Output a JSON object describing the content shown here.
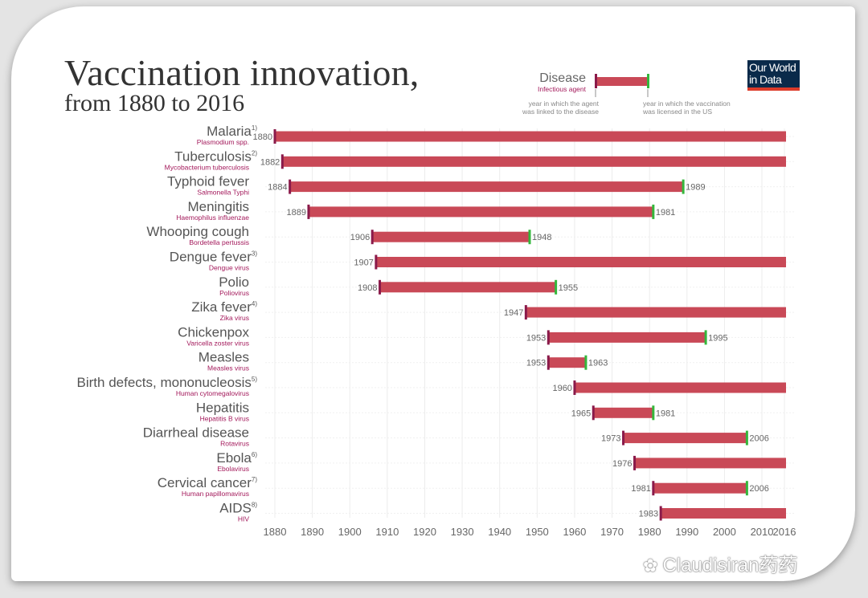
{
  "title": "Vaccination innovation,",
  "subtitle": "from 1880 to 2016",
  "logo": {
    "line1": "Our World",
    "line2": "in Data"
  },
  "legend": {
    "disease": "Disease",
    "agent": "Infectious agent",
    "left_note_1": "year in which the agent",
    "left_note_2": "was linked to the disease",
    "right_note_1": "year in which the vaccination",
    "right_note_2": "was licensed in the US"
  },
  "watermark": "Claudisiran药药",
  "colors": {
    "bar": "#c94957",
    "start": "#8a1a4a",
    "end": "#34b73c",
    "agent": "#a3195b",
    "text": "#555555"
  },
  "chart_data": {
    "type": "bar",
    "orientation": "horizontal-range",
    "x_ticks": [
      1880,
      1890,
      1900,
      1910,
      1920,
      1930,
      1940,
      1950,
      1960,
      1970,
      1980,
      1990,
      2000,
      2010,
      2016
    ],
    "xlim": [
      1880,
      2016
    ],
    "rows": [
      {
        "disease": "Malaria",
        "note": "1)",
        "agent": "Plasmodium spp.",
        "start": 1880,
        "end": null
      },
      {
        "disease": "Tuberculosis",
        "note": "2)",
        "agent": "Mycobacterium tuberculosis",
        "start": 1882,
        "end": null
      },
      {
        "disease": "Typhoid fever",
        "note": "",
        "agent": "Salmonella Typhi",
        "start": 1884,
        "end": 1989
      },
      {
        "disease": "Meningitis",
        "note": "",
        "agent": "Haemophilus influenzae",
        "start": 1889,
        "end": 1981
      },
      {
        "disease": "Whooping cough",
        "note": "",
        "agent": "Bordetella pertussis",
        "start": 1906,
        "end": 1948
      },
      {
        "disease": "Dengue fever",
        "note": "3)",
        "agent": "Dengue virus",
        "start": 1907,
        "end": null
      },
      {
        "disease": "Polio",
        "note": "",
        "agent": "Poliovirus",
        "start": 1908,
        "end": 1955
      },
      {
        "disease": "Zika fever",
        "note": "4)",
        "agent": "Zika virus",
        "start": 1947,
        "end": null
      },
      {
        "disease": "Chickenpox",
        "note": "",
        "agent": "Varicella zoster virus",
        "start": 1953,
        "end": 1995
      },
      {
        "disease": "Measles",
        "note": "",
        "agent": "Measles virus",
        "start": 1953,
        "end": 1963
      },
      {
        "disease": "Birth defects, mononucleosis",
        "note": "5)",
        "agent": "Human cytomegalovirus",
        "start": 1960,
        "end": null
      },
      {
        "disease": "Hepatitis",
        "note": "",
        "agent": "Hepatitis B virus",
        "start": 1965,
        "end": 1981
      },
      {
        "disease": "Diarrheal disease",
        "note": "",
        "agent": "Rotavirus",
        "start": 1973,
        "end": 2006
      },
      {
        "disease": "Ebola",
        "note": "6)",
        "agent": "Ebolavirus",
        "start": 1976,
        "end": null
      },
      {
        "disease": "Cervical cancer",
        "note": "7)",
        "agent": "Human papillomavirus",
        "start": 1981,
        "end": 2006
      },
      {
        "disease": "AIDS",
        "note": "8)",
        "agent": "HIV",
        "start": 1983,
        "end": null
      }
    ]
  }
}
